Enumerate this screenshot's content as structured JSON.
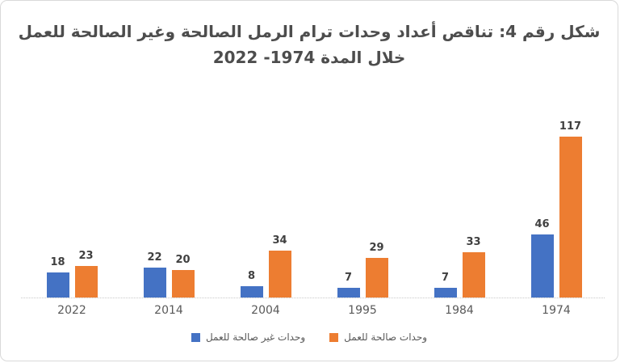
{
  "title": {
    "line1": "شكل رقم 4: تناقص أعداد وحدات ترام الرمل الصالحة وغير الصالحة للعمل",
    "line2": "خلال المدة 1974- 2022"
  },
  "chart_data": {
    "type": "bar",
    "direction": "rtl",
    "title": "شكل رقم 4: تناقص أعداد وحدات ترام الرمل الصالحة وغير الصالحة للعمل خلال المدة 1974- 2022",
    "categories": [
      "2022",
      "2014",
      "2004",
      "1995",
      "1984",
      "1974"
    ],
    "series": [
      {
        "name": "وحدات غير صالحة للعمل",
        "color": "#4472C4",
        "values": [
          18,
          22,
          8,
          7,
          7,
          46
        ]
      },
      {
        "name": "وحدات صالحة للعمل",
        "color": "#ED7D31",
        "values": [
          23,
          20,
          34,
          29,
          33,
          117
        ]
      }
    ],
    "xlabel": "",
    "ylabel": "",
    "ylim": [
      0,
      120
    ],
    "value_labels": true,
    "gridlines": false,
    "legend_position": "bottom",
    "axis_line_color": "#D9D9D9",
    "value_label_color": "#404040",
    "category_label_color": "#595959",
    "title_color": "#4D4D4D",
    "background": "#FFFFFF"
  },
  "legend": {
    "entries": [
      {
        "label": "وحدات صالحة للعمل",
        "color": "#ED7D31"
      },
      {
        "label": "وحدات غير صالحة للعمل",
        "color": "#4472C4"
      }
    ]
  }
}
